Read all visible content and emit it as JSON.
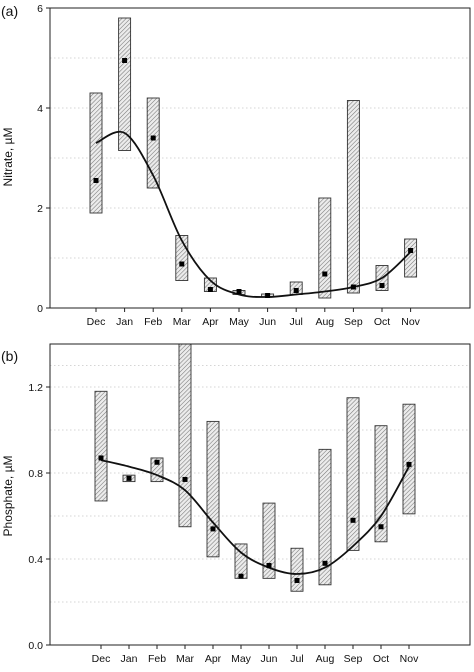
{
  "chart_data": [
    {
      "type": "box",
      "panel_label": "(a)",
      "title": "",
      "xlabel": "",
      "ylabel": "Nitrate, µM",
      "ylim": [
        0,
        6
      ],
      "yticks": [
        "0",
        "2",
        "4",
        "6"
      ],
      "ytick_values": [
        0,
        2,
        4,
        6
      ],
      "grid": "horizontal",
      "categories": [
        "Dec",
        "Jan",
        "Feb",
        "Mar",
        "Apr",
        "May",
        "Jun",
        "Jul",
        "Aug",
        "Sep",
        "Oct",
        "Nov"
      ],
      "boxes": [
        {
          "low": 1.9,
          "high": 4.3,
          "mean": 2.55
        },
        {
          "low": 3.15,
          "high": 5.8,
          "mean": 4.95
        },
        {
          "low": 2.4,
          "high": 4.2,
          "mean": 3.4
        },
        {
          "low": 0.55,
          "high": 1.45,
          "mean": 0.88
        },
        {
          "low": 0.33,
          "high": 0.6,
          "mean": 0.37
        },
        {
          "low": 0.27,
          "high": 0.35,
          "mean": 0.33
        },
        {
          "low": 0.22,
          "high": 0.28,
          "mean": 0.25
        },
        {
          "low": 0.27,
          "high": 0.52,
          "mean": 0.35
        },
        {
          "low": 0.2,
          "high": 2.2,
          "mean": 0.68
        },
        {
          "low": 0.3,
          "high": 4.15,
          "mean": 0.42
        },
        {
          "low": 0.35,
          "high": 0.85,
          "mean": 0.45
        },
        {
          "low": 0.62,
          "high": 1.38,
          "mean": 1.15
        }
      ],
      "fit_curve": [
        3.3,
        3.5,
        2.65,
        1.35,
        0.55,
        0.27,
        0.22,
        0.27,
        0.33,
        0.42,
        0.6,
        1.12
      ]
    },
    {
      "type": "box",
      "panel_label": "(b)",
      "title": "",
      "xlabel": "",
      "ylabel": "Phosphate, µM",
      "ylim": [
        0,
        1.4
      ],
      "yticks": [
        "0.0",
        "0.4",
        "0.8",
        "1.2"
      ],
      "ytick_values": [
        0,
        0.4,
        0.8,
        1.2
      ],
      "grid": "horizontal",
      "categories": [
        "Dec",
        "Jan",
        "Feb",
        "Mar",
        "Apr",
        "May",
        "Jun",
        "Jul",
        "Aug",
        "Sep",
        "Oct",
        "Nov"
      ],
      "boxes": [
        {
          "low": 0.67,
          "high": 1.18,
          "mean": 0.87
        },
        {
          "low": 0.76,
          "high": 0.79,
          "mean": 0.775
        },
        {
          "low": 0.76,
          "high": 0.87,
          "mean": 0.85
        },
        {
          "low": 0.55,
          "high": 1.4,
          "mean": 0.77
        },
        {
          "low": 0.41,
          "high": 1.04,
          "mean": 0.54
        },
        {
          "low": 0.31,
          "high": 0.47,
          "mean": 0.32
        },
        {
          "low": 0.31,
          "high": 0.66,
          "mean": 0.37
        },
        {
          "low": 0.25,
          "high": 0.45,
          "mean": 0.3
        },
        {
          "low": 0.28,
          "high": 0.91,
          "mean": 0.38
        },
        {
          "low": 0.44,
          "high": 1.15,
          "mean": 0.58
        },
        {
          "low": 0.48,
          "high": 1.02,
          "mean": 0.55
        },
        {
          "low": 0.61,
          "high": 1.12,
          "mean": 0.84
        }
      ],
      "fit_curve": [
        0.86,
        0.83,
        0.79,
        0.72,
        0.57,
        0.43,
        0.36,
        0.33,
        0.36,
        0.46,
        0.6,
        0.83
      ]
    }
  ]
}
